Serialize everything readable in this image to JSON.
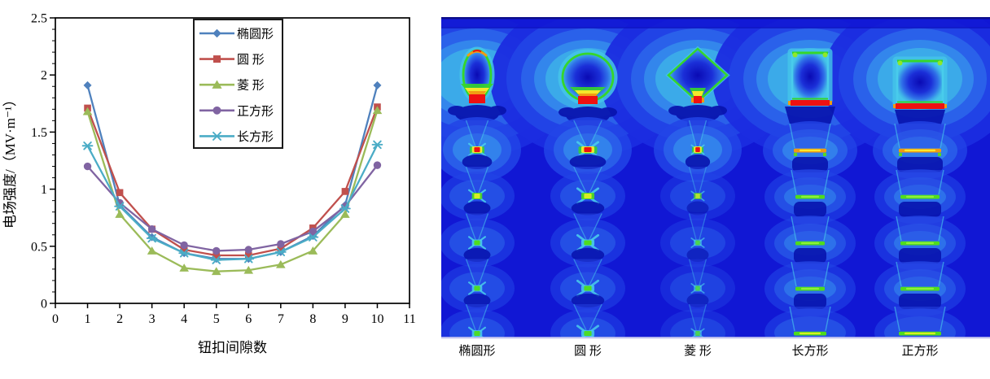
{
  "figure": {
    "description_left_panel": "line chart of field strength vs button gap number",
    "description_right_panel": "electric field distribution simulation for five button shapes"
  },
  "chart_data": {
    "type": "line",
    "title": "",
    "xlabel": "钮扣间隙数",
    "ylabel": "电场强度/（MV·m⁻¹）",
    "xlim": [
      0,
      11
    ],
    "ylim": [
      0,
      2.5
    ],
    "x_ticks": [
      0,
      1,
      2,
      3,
      4,
      5,
      6,
      7,
      8,
      9,
      10,
      11
    ],
    "y_ticks": [
      0,
      0.5,
      1,
      1.5,
      2,
      2.5
    ],
    "y_tick_labels": [
      "0",
      "0.5",
      "1",
      "1.5",
      "2",
      "2.5"
    ],
    "y_minor_step": 0.1,
    "grid": false,
    "legend_position": "top-right-inside",
    "x": [
      1,
      2,
      3,
      4,
      5,
      6,
      7,
      8,
      9,
      10
    ],
    "series": [
      {
        "name": "椭圆形",
        "marker": "diamond",
        "color": "#4F81BD",
        "values": [
          1.91,
          0.86,
          0.58,
          0.44,
          0.39,
          0.39,
          0.45,
          0.59,
          0.86,
          1.91
        ]
      },
      {
        "name": "圆 形",
        "marker": "square",
        "color": "#C0504D",
        "values": [
          1.71,
          0.97,
          0.65,
          0.47,
          0.42,
          0.42,
          0.48,
          0.66,
          0.98,
          1.72
        ]
      },
      {
        "name": "菱 形",
        "marker": "triangle",
        "color": "#9BBB59",
        "values": [
          1.68,
          0.78,
          0.46,
          0.31,
          0.28,
          0.29,
          0.34,
          0.46,
          0.78,
          1.69
        ]
      },
      {
        "name": "正方形",
        "marker": "circle",
        "color": "#8064A2",
        "values": [
          1.2,
          0.88,
          0.65,
          0.51,
          0.46,
          0.47,
          0.52,
          0.63,
          0.85,
          1.21
        ]
      },
      {
        "name": "长方形",
        "marker": "xstar",
        "color": "#4BACC6",
        "values": [
          1.38,
          0.85,
          0.57,
          0.44,
          0.38,
          0.39,
          0.45,
          0.58,
          0.83,
          1.39
        ]
      }
    ]
  },
  "simulation": {
    "columns": [
      {
        "label": "椭圆形",
        "shape": "ellipse"
      },
      {
        "label": "圆 形",
        "shape": "circle"
      },
      {
        "label": "菱 形",
        "shape": "diamond"
      },
      {
        "label": "长方形",
        "shape": "tall-rect"
      },
      {
        "label": "正方形",
        "shape": "square"
      }
    ],
    "palette": {
      "field_blue": "#1117d4",
      "halo_steps": [
        "#1b2ce0",
        "#2244e6",
        "#2b63ea",
        "#3488ec",
        "#3cace9",
        "#42c6e4"
      ],
      "contour_cyan": "#49ccec",
      "outline_green": "#36d62a",
      "bar_green": "#4fdc1c",
      "bar_green_core": "#8df03c",
      "hot_yellow": "#ffe92a",
      "hot_yellow_green": "#d6ee22",
      "hot_orange": "#f09a12",
      "hot_red": "#ee1111",
      "dark_blob": "#0813ae",
      "funnel_blue": "#2a49e6",
      "border_top": "#0d0d85",
      "border_bottom": "#c9c9ef",
      "label_color": "#2a2a33"
    }
  }
}
